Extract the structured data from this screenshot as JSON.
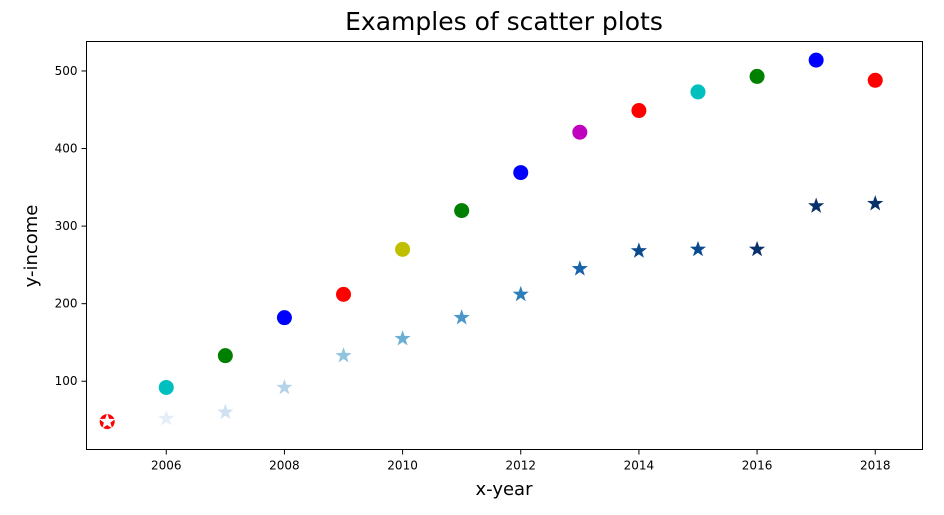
{
  "chart_data": {
    "type": "scatter",
    "title": "Examples of scatter plots",
    "xlabel": "x-year",
    "ylabel": "y-income",
    "xlim": [
      2004.65,
      2018.8
    ],
    "ylim": [
      12,
      538
    ],
    "xticks": [
      2006,
      2008,
      2010,
      2012,
      2014,
      2016,
      2018
    ],
    "yticks": [
      100,
      200,
      300,
      400,
      500
    ],
    "grid": false,
    "legend": "none",
    "series": [
      {
        "marker": "circle",
        "points": [
          {
            "x": 2005,
            "y": 48,
            "color": "#ff0000"
          },
          {
            "x": 2006,
            "y": 92,
            "color": "#00bfbf"
          },
          {
            "x": 2007,
            "y": 133,
            "color": "#008000"
          },
          {
            "x": 2008,
            "y": 182,
            "color": "#0000ff"
          },
          {
            "x": 2009,
            "y": 212,
            "color": "#ff0000"
          },
          {
            "x": 2010,
            "y": 270,
            "color": "#bfbf00"
          },
          {
            "x": 2011,
            "y": 320,
            "color": "#008000"
          },
          {
            "x": 2012,
            "y": 369,
            "color": "#0000ff"
          },
          {
            "x": 2013,
            "y": 421,
            "color": "#bf00bf"
          },
          {
            "x": 2014,
            "y": 449,
            "color": "#ff0000"
          },
          {
            "x": 2015,
            "y": 473,
            "color": "#00bfbf"
          },
          {
            "x": 2016,
            "y": 493,
            "color": "#008000"
          },
          {
            "x": 2017,
            "y": 514,
            "color": "#0000ff"
          },
          {
            "x": 2018,
            "y": 488,
            "color": "#ff0000"
          }
        ]
      },
      {
        "marker": "star",
        "points": [
          {
            "x": 2005,
            "y": 48,
            "color": "#f7fbff"
          },
          {
            "x": 2006,
            "y": 52,
            "color": "#e3eef9"
          },
          {
            "x": 2007,
            "y": 60,
            "color": "#cfe1f2"
          },
          {
            "x": 2008,
            "y": 92,
            "color": "#b5d4e9"
          },
          {
            "x": 2009,
            "y": 133,
            "color": "#93c4df"
          },
          {
            "x": 2010,
            "y": 155,
            "color": "#6daed5"
          },
          {
            "x": 2011,
            "y": 182,
            "color": "#4b97c9"
          },
          {
            "x": 2012,
            "y": 212,
            "color": "#2f7ebc"
          },
          {
            "x": 2013,
            "y": 245,
            "color": "#1864aa"
          },
          {
            "x": 2014,
            "y": 268,
            "color": "#0a4a90"
          },
          {
            "x": 2015,
            "y": 270,
            "color": "#0a4a90"
          },
          {
            "x": 2016,
            "y": 270,
            "color": "#08306b"
          },
          {
            "x": 2017,
            "y": 326,
            "color": "#08306b"
          },
          {
            "x": 2018,
            "y": 329,
            "color": "#08306b"
          }
        ]
      }
    ]
  }
}
